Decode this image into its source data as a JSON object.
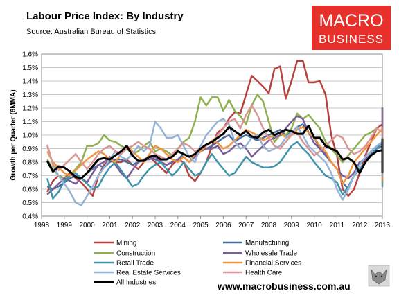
{
  "header": {
    "title": "Labour Price Index: By Industry",
    "source": "Source: Australian Bureau of Statistics"
  },
  "logo": {
    "line1": "MACRO",
    "line2": "BUSINESS",
    "background": "#e8302a"
  },
  "footer": {
    "url": "www.macrobusiness.com.au"
  },
  "chart_data": {
    "type": "line",
    "title": "Labour Price Index: By Industry",
    "xlabel": "",
    "ylabel": "Growth per Quarter (6MMA)",
    "xlim": [
      1998,
      2013
    ],
    "ylim": [
      0.4,
      1.6
    ],
    "x_ticks": [
      "1998",
      "1999",
      "2000",
      "2001",
      "2002",
      "2003",
      "2004",
      "2005",
      "2006",
      "2007",
      "2008",
      "2009",
      "2010",
      "2011",
      "2012",
      "2013"
    ],
    "y_ticks": [
      "0.4%",
      "0.5%",
      "0.6%",
      "0.7%",
      "0.8%",
      "0.9%",
      "1.0%",
      "1.1%",
      "1.2%",
      "1.3%",
      "1.4%",
      "1.5%",
      "1.6%"
    ],
    "grid": true,
    "legend_position": "bottom",
    "x_start": 1998.25,
    "x_step": 0.25,
    "series": [
      {
        "name": "Mining",
        "color": "#b7413e",
        "width": 2.5,
        "values": [
          0.58,
          0.66,
          0.7,
          0.68,
          0.72,
          0.68,
          0.65,
          0.6,
          0.55,
          0.7,
          0.78,
          0.82,
          0.8,
          0.8,
          0.82,
          0.78,
          0.75,
          0.8,
          0.84,
          0.8,
          0.76,
          0.72,
          0.78,
          0.82,
          0.8,
          0.7,
          0.66,
          0.72,
          0.8,
          0.92,
          1.02,
          1.05,
          1.12,
          1.17,
          1.16,
          1.3,
          1.44,
          1.4,
          1.36,
          1.31,
          1.49,
          1.51,
          1.27,
          1.4,
          1.55,
          1.55,
          1.39,
          1.39,
          1.4,
          1.3,
          1.0,
          0.85,
          0.6,
          0.55,
          0.6,
          0.72,
          0.85,
          0.95,
          1.05,
          1.08,
          0.98,
          1.12,
          1.2,
          1.15,
          1.1,
          1.08,
          1.2,
          1.19,
          0.95
        ]
      },
      {
        "name": "Manufacturing",
        "color": "#4a6f9c",
        "width": 2.5,
        "values": [
          0.62,
          0.6,
          0.62,
          0.65,
          0.68,
          0.7,
          0.68,
          0.72,
          0.75,
          0.78,
          0.76,
          0.8,
          0.82,
          0.82,
          0.8,
          0.78,
          0.8,
          0.82,
          0.84,
          0.82,
          0.8,
          0.78,
          0.8,
          0.82,
          0.86,
          0.84,
          0.86,
          0.88,
          0.9,
          0.92,
          0.95,
          0.98,
          1.0,
          0.95,
          0.98,
          1.0,
          0.98,
          0.96,
          0.98,
          1.0,
          1.02,
          1.04,
          1.0,
          1.02,
          1.06,
          1.08,
          1.02,
          0.98,
          0.9,
          0.85,
          0.8,
          0.75,
          0.65,
          0.6,
          0.7,
          0.8,
          0.82,
          0.86,
          0.9,
          0.92,
          0.94,
          0.98,
          1.0,
          0.92,
          0.88,
          0.9,
          0.92,
          0.88,
          0.85,
          0.8,
          0.8
        ]
      },
      {
        "name": "Construction",
        "color": "#8eb04f",
        "width": 2.5,
        "values": [
          0.82,
          0.75,
          0.7,
          0.68,
          0.7,
          0.75,
          0.8,
          0.92,
          0.92,
          0.94,
          1.0,
          0.96,
          0.95,
          0.92,
          0.9,
          0.86,
          0.88,
          0.92,
          0.95,
          0.88,
          0.9,
          0.88,
          0.85,
          0.9,
          0.95,
          0.98,
          1.1,
          1.28,
          1.22,
          1.28,
          1.28,
          1.18,
          1.26,
          1.18,
          1.14,
          1.08,
          1.22,
          1.3,
          1.25,
          1.1,
          0.95,
          1.0,
          1.0,
          1.05,
          1.16,
          1.12,
          1.15,
          1.1,
          1.05,
          0.95,
          0.9,
          0.85,
          0.8,
          0.85,
          0.9,
          0.95,
          1.0,
          1.02,
          1.05,
          1.02,
          0.95,
          1.0,
          0.95,
          0.9,
          0.88,
          0.85,
          0.82,
          0.78,
          0.8,
          0.75,
          0.72
        ]
      },
      {
        "name": "Wholesale Trade",
        "color": "#7b5c9a",
        "width": 2.5,
        "values": [
          0.56,
          0.6,
          0.64,
          0.68,
          0.66,
          0.64,
          0.68,
          0.65,
          0.72,
          0.78,
          0.8,
          0.84,
          0.78,
          0.72,
          0.68,
          0.74,
          0.8,
          0.82,
          0.82,
          0.84,
          0.8,
          0.78,
          0.8,
          0.82,
          0.84,
          0.8,
          0.84,
          0.88,
          0.9,
          0.9,
          0.92,
          0.86,
          0.88,
          0.92,
          0.94,
          0.9,
          0.84,
          0.88,
          0.92,
          0.96,
          0.98,
          1.0,
          1.05,
          1.1,
          1.14,
          1.12,
          1.02,
          0.94,
          0.9,
          0.86,
          0.8,
          0.75,
          0.7,
          0.68,
          0.72,
          0.8,
          0.82,
          0.85,
          0.9,
          0.95,
          0.98,
          1.05,
          1.18,
          1.2,
          1.15,
          1.1,
          0.95,
          0.8,
          0.82
        ]
      },
      {
        "name": "Retail Trade",
        "color": "#3f94ab",
        "width": 2.5,
        "values": [
          0.68,
          0.53,
          0.58,
          0.66,
          0.7,
          0.72,
          0.68,
          0.64,
          0.6,
          0.62,
          0.7,
          0.76,
          0.8,
          0.74,
          0.68,
          0.62,
          0.64,
          0.7,
          0.75,
          0.78,
          0.8,
          0.75,
          0.7,
          0.74,
          0.8,
          0.75,
          0.7,
          0.72,
          0.8,
          0.86,
          0.8,
          0.75,
          0.7,
          0.72,
          0.78,
          0.84,
          0.8,
          0.78,
          0.76,
          0.76,
          0.77,
          0.8,
          0.86,
          0.92,
          0.95,
          0.9,
          0.86,
          0.8,
          0.75,
          0.7,
          0.68,
          0.65,
          0.56,
          0.62,
          0.7,
          0.75,
          0.8,
          0.85,
          0.9,
          0.95,
          0.88,
          0.8,
          0.76,
          0.7,
          0.68,
          0.66,
          0.62,
          0.65,
          0.72
        ]
      },
      {
        "name": "Financial Services",
        "color": "#f0953d",
        "width": 2.5,
        "values": [
          0.88,
          0.8,
          0.76,
          0.72,
          0.7,
          0.74,
          0.78,
          0.82,
          0.85,
          0.88,
          0.86,
          0.82,
          0.8,
          0.86,
          0.92,
          0.88,
          0.84,
          0.8,
          0.86,
          0.92,
          0.9,
          0.86,
          0.82,
          0.8,
          0.84,
          0.8,
          0.86,
          0.88,
          0.92,
          0.96,
          0.94,
          0.9,
          0.92,
          0.96,
          1.0,
          1.04,
          1.02,
          1.0,
          0.96,
          0.98,
          1.0,
          1.02,
          0.98,
          1.0,
          1.04,
          1.06,
          1.02,
          0.98,
          0.92,
          0.88,
          0.8,
          0.75,
          0.64,
          0.7,
          0.8,
          0.85,
          0.9,
          0.95,
          1.0,
          1.05,
          1.0,
          0.95,
          0.9,
          0.85,
          0.82,
          0.8,
          0.75,
          0.72,
          0.7,
          0.66,
          0.68
        ]
      },
      {
        "name": "Real Estate Services",
        "color": "#95b3d7",
        "width": 2.5,
        "values": [
          0.92,
          0.78,
          0.7,
          0.64,
          0.58,
          0.5,
          0.48,
          0.55,
          0.62,
          0.7,
          0.76,
          0.82,
          0.88,
          0.84,
          0.82,
          0.86,
          0.92,
          0.88,
          0.92,
          1.1,
          1.05,
          0.98,
          0.98,
          1.0,
          0.92,
          0.84,
          0.8,
          0.92,
          1.0,
          1.05,
          1.1,
          1.12,
          1.08,
          0.95,
          0.9,
          0.92,
          0.98,
          1.0,
          0.92,
          0.88,
          0.9,
          0.92,
          0.98,
          1.02,
          1.06,
          1.0,
          0.92,
          0.88,
          0.84,
          0.8,
          0.72,
          0.6,
          0.52,
          0.6,
          0.7,
          0.78,
          0.84,
          0.88,
          0.92,
          0.95,
          0.98,
          1.0,
          0.95,
          0.9,
          0.85,
          0.8,
          0.75,
          0.72,
          0.7,
          0.7,
          0.72
        ]
      },
      {
        "name": "Health Care",
        "color": "#d99694",
        "width": 2.5,
        "values": [
          0.93,
          0.78,
          0.74,
          0.78,
          0.82,
          0.86,
          0.8,
          0.75,
          0.8,
          0.86,
          0.9,
          0.92,
          0.88,
          0.86,
          0.9,
          0.92,
          0.95,
          0.92,
          0.9,
          0.86,
          0.84,
          0.82,
          0.86,
          0.9,
          0.94,
          0.92,
          0.88,
          0.9,
          0.92,
          0.95,
          1.0,
          1.05,
          1.1,
          1.12,
          1.05,
          1.15,
          1.22,
          1.15,
          1.05,
          0.98,
          0.92,
          0.9,
          0.95,
          1.0,
          1.02,
          0.95,
          0.9,
          0.85,
          0.88,
          0.92,
          0.96,
          1.0,
          0.98,
          0.9,
          0.86,
          0.88,
          0.92,
          0.98,
          1.05,
          1.02,
          0.95,
          0.9,
          0.86,
          0.82,
          0.8,
          0.78,
          0.75,
          0.78,
          0.8,
          0.82,
          0.86
        ]
      },
      {
        "name": "All Industries",
        "color": "#000000",
        "width": 3,
        "values": [
          0.81,
          0.73,
          0.77,
          0.76,
          0.73,
          0.69,
          0.68,
          0.72,
          0.77,
          0.82,
          0.83,
          0.82,
          0.85,
          0.88,
          0.92,
          0.85,
          0.81,
          0.81,
          0.84,
          0.85,
          0.82,
          0.82,
          0.84,
          0.88,
          0.86,
          0.84,
          0.86,
          0.9,
          0.93,
          0.95,
          0.98,
          1.01,
          1.06,
          1.03,
          1.0,
          1.03,
          0.99,
          0.98,
          1.02,
          1.04,
          1.0,
          1.02,
          1.04,
          1.03,
          1.01,
          1.01,
          1.07,
          0.98,
          0.98,
          0.92,
          0.9,
          0.88,
          0.82,
          0.83,
          0.8,
          0.72,
          0.8,
          0.85,
          0.88,
          0.89,
          0.88,
          0.92,
          0.97,
          0.88,
          0.86,
          0.89,
          0.92,
          0.86,
          0.8,
          0.74,
          0.76,
          0.72
        ]
      }
    ]
  }
}
